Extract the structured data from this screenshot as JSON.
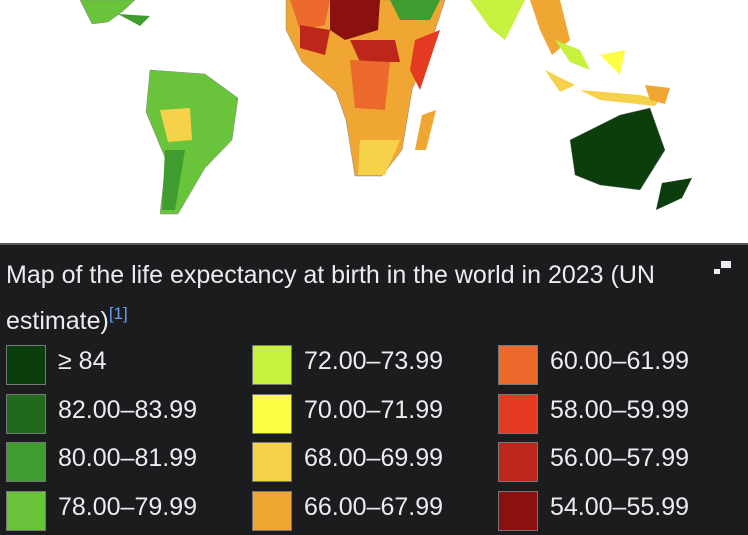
{
  "caption": {
    "text": "Map of the life expectancy at birth in the world in 2023 (UN estimate)",
    "ref": "[1]"
  },
  "legend": [
    {
      "label": "≥ 84",
      "color": "#0c3d0c"
    },
    {
      "label": "82.00–83.99",
      "color": "#1f6a1c"
    },
    {
      "label": "80.00–81.99",
      "color": "#3f9c2e"
    },
    {
      "label": "78.00–79.99",
      "color": "#69c33b"
    },
    {
      "label": "72.00–73.99",
      "color": "#c6f13e"
    },
    {
      "label": "70.00–71.99",
      "color": "#fdfd45"
    },
    {
      "label": "68.00–69.99",
      "color": "#f6d24a"
    },
    {
      "label": "66.00–67.99",
      "color": "#efa632"
    },
    {
      "label": "60.00–61.99",
      "color": "#ec6a2b"
    },
    {
      "label": "58.00–59.99",
      "color": "#e43a22"
    },
    {
      "label": "56.00–57.99",
      "color": "#bd261b"
    },
    {
      "label": "54.00–55.99",
      "color": "#8b1111"
    }
  ]
}
